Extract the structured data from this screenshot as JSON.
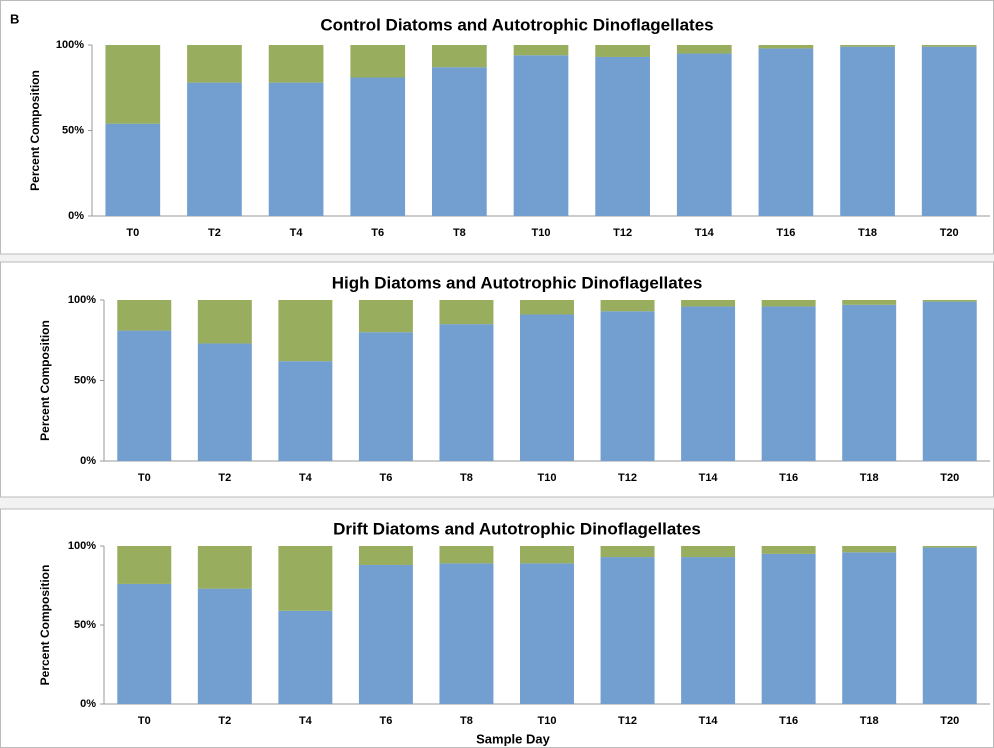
{
  "panel_label": "B",
  "chart_data": [
    {
      "type": "stacked_bar",
      "title": "Control Diatoms and Autotrophic Dinoflagellates",
      "y_label": "Percent Composition",
      "categories": [
        "T0",
        "T2",
        "T4",
        "T6",
        "T8",
        "T10",
        "T12",
        "T14",
        "T16",
        "T18",
        "T20"
      ],
      "series": [
        {
          "color": "#729fcf",
          "values": [
            54,
            78,
            78,
            81,
            87,
            94,
            93,
            95,
            98,
            99,
            99
          ]
        },
        {
          "color": "#98ad5d",
          "values": [
            46,
            22,
            22,
            19,
            13,
            6,
            7,
            5,
            2,
            1,
            1
          ]
        }
      ],
      "ylim": [
        0,
        100
      ],
      "yticks": [
        {
          "value": 0,
          "label": "0%"
        },
        {
          "value": 50,
          "label": "50%"
        },
        {
          "value": 100,
          "label": "100%"
        }
      ]
    },
    {
      "type": "stacked_bar",
      "title": "High Diatoms and Autotrophic Dinoflagellates",
      "y_label": "Percent Composition",
      "categories": [
        "T0",
        "T2",
        "T4",
        "T6",
        "T8",
        "T10",
        "T12",
        "T14",
        "T16",
        "T18",
        "T20"
      ],
      "series": [
        {
          "color": "#729fcf",
          "values": [
            81,
            73,
            62,
            80,
            85,
            91,
            93,
            96,
            96,
            97,
            99
          ]
        },
        {
          "color": "#98ad5d",
          "values": [
            19,
            27,
            38,
            20,
            15,
            9,
            7,
            4,
            4,
            3,
            1
          ]
        }
      ],
      "ylim": [
        0,
        100
      ],
      "yticks": [
        {
          "value": 0,
          "label": "0%"
        },
        {
          "value": 50,
          "label": "50%"
        },
        {
          "value": 100,
          "label": "100%"
        }
      ]
    },
    {
      "type": "stacked_bar",
      "title": "Drift Diatoms and Autotrophic Dinoflagellates",
      "y_label": "Percent Composition",
      "x_label": "Sample Day",
      "categories": [
        "T0",
        "T2",
        "T4",
        "T6",
        "T8",
        "T10",
        "T12",
        "T14",
        "T16",
        "T18",
        "T20"
      ],
      "series": [
        {
          "color": "#729fcf",
          "values": [
            76,
            73,
            59,
            88,
            89,
            89,
            93,
            93,
            95,
            96,
            99
          ]
        },
        {
          "color": "#98ad5d",
          "values": [
            24,
            27,
            41,
            12,
            11,
            11,
            7,
            7,
            5,
            4,
            1
          ]
        }
      ],
      "ylim": [
        0,
        100
      ],
      "yticks": [
        {
          "value": 0,
          "label": "0%"
        },
        {
          "value": 50,
          "label": "50%"
        },
        {
          "value": 100,
          "label": "100%"
        }
      ]
    }
  ]
}
